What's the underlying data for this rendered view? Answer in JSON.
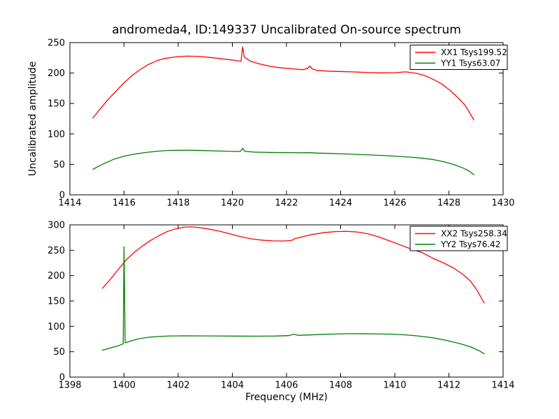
{
  "figure": {
    "title": "andromeda4, ID:149337 Uncalibrated On-source spectrum",
    "background": "#ffffff"
  },
  "axes": {
    "ylabel": "Uncalibrated amplitude",
    "xlabel": "Frequency (MHz)"
  },
  "colors": {
    "xx_line": "#ff0000",
    "yy_line": "#008000",
    "axis": "#000000",
    "legend_background": "#ffffff"
  },
  "chart_data": [
    {
      "type": "line",
      "title": "",
      "xlabel": "",
      "ylabel": "Uncalibrated amplitude",
      "xlim": [
        1414,
        1430
      ],
      "ylim": [
        0,
        250
      ],
      "xticks": [
        1414,
        1416,
        1418,
        1420,
        1422,
        1424,
        1426,
        1428,
        1430
      ],
      "yticks": [
        0,
        50,
        100,
        150,
        200,
        250
      ],
      "grid": false,
      "legend_position": "upper right",
      "series": [
        {
          "name": "XX1 Tsys199.52",
          "color": "#ff0000",
          "points": [
            [
              1414.85,
              126
            ],
            [
              1415.1,
              140
            ],
            [
              1415.4,
              156
            ],
            [
              1415.7,
              170
            ],
            [
              1416.0,
              184
            ],
            [
              1416.3,
              196
            ],
            [
              1416.6,
              206
            ],
            [
              1416.9,
              214
            ],
            [
              1417.2,
              220
            ],
            [
              1417.5,
              224
            ],
            [
              1417.9,
              226.5
            ],
            [
              1418.3,
              227.8
            ],
            [
              1418.7,
              227.5
            ],
            [
              1419.1,
              226
            ],
            [
              1419.5,
              224
            ],
            [
              1419.9,
              222
            ],
            [
              1420.2,
              220
            ],
            [
              1420.32,
              219.5
            ],
            [
              1420.38,
              243
            ],
            [
              1420.44,
              226
            ],
            [
              1420.55,
              223
            ],
            [
              1420.7,
              219
            ],
            [
              1421.0,
              215
            ],
            [
              1421.4,
              211
            ],
            [
              1421.8,
              208.5
            ],
            [
              1422.2,
              207
            ],
            [
              1422.6,
              205.5
            ],
            [
              1422.78,
              207.5
            ],
            [
              1422.85,
              211.5
            ],
            [
              1422.95,
              207
            ],
            [
              1423.1,
              204.5
            ],
            [
              1423.5,
              203.2
            ],
            [
              1424.0,
              202.5
            ],
            [
              1424.5,
              201.8
            ],
            [
              1425.0,
              200.8
            ],
            [
              1425.5,
              200.2
            ],
            [
              1426.0,
              200.5
            ],
            [
              1426.4,
              202
            ],
            [
              1426.8,
              199.5
            ],
            [
              1427.1,
              196
            ],
            [
              1427.4,
              190
            ],
            [
              1427.7,
              183
            ],
            [
              1428.0,
              173
            ],
            [
              1428.3,
              161
            ],
            [
              1428.6,
              147
            ],
            [
              1428.92,
              123
            ]
          ]
        },
        {
          "name": "YY1 Tsys63.07",
          "color": "#008000",
          "points": [
            [
              1414.85,
              42
            ],
            [
              1415.2,
              50
            ],
            [
              1415.6,
              58
            ],
            [
              1416.0,
              63.5
            ],
            [
              1416.4,
              67
            ],
            [
              1416.8,
              69.5
            ],
            [
              1417.2,
              71.5
            ],
            [
              1417.6,
              72.8
            ],
            [
              1418.0,
              73.2
            ],
            [
              1418.5,
              73.2
            ],
            [
              1419.0,
              72.6
            ],
            [
              1419.5,
              72
            ],
            [
              1420.0,
              71.4
            ],
            [
              1420.3,
              71.2
            ],
            [
              1420.38,
              76.5
            ],
            [
              1420.46,
              71.5
            ],
            [
              1420.8,
              70.2
            ],
            [
              1421.3,
              69.6
            ],
            [
              1421.9,
              69.3
            ],
            [
              1422.5,
              69.1
            ],
            [
              1422.85,
              69.3
            ],
            [
              1423.1,
              68.6
            ],
            [
              1423.6,
              68
            ],
            [
              1424.1,
              67.2
            ],
            [
              1424.6,
              66.4
            ],
            [
              1425.1,
              65.5
            ],
            [
              1425.6,
              64.5
            ],
            [
              1426.1,
              63.2
            ],
            [
              1426.6,
              61.8
            ],
            [
              1427.0,
              60.3
            ],
            [
              1427.4,
              58
            ],
            [
              1427.8,
              54.5
            ],
            [
              1428.2,
              49.5
            ],
            [
              1428.5,
              44.5
            ],
            [
              1428.75,
              39
            ],
            [
              1428.92,
              33
            ]
          ]
        }
      ]
    },
    {
      "type": "line",
      "title": "",
      "xlabel": "Frequency (MHz)",
      "ylabel": "",
      "xlim": [
        1398,
        1414
      ],
      "ylim": [
        0,
        300
      ],
      "xticks": [
        1398,
        1400,
        1402,
        1404,
        1406,
        1408,
        1410,
        1412,
        1414
      ],
      "yticks": [
        0,
        50,
        100,
        150,
        200,
        250,
        300
      ],
      "grid": false,
      "legend_position": "upper right",
      "series": [
        {
          "name": "XX2 Tsys258.34",
          "color": "#ff0000",
          "points": [
            [
              1399.2,
              175
            ],
            [
              1399.5,
              193
            ],
            [
              1399.8,
              213
            ],
            [
              1400.1,
              232
            ],
            [
              1400.4,
              247
            ],
            [
              1400.7,
              259
            ],
            [
              1401.0,
              270
            ],
            [
              1401.3,
              279
            ],
            [
              1401.6,
              287
            ],
            [
              1401.9,
              292
            ],
            [
              1402.2,
              295.5
            ],
            [
              1402.5,
              296
            ],
            [
              1402.8,
              294.5
            ],
            [
              1403.1,
              292
            ],
            [
              1403.5,
              288
            ],
            [
              1403.9,
              282.5
            ],
            [
              1404.3,
              277
            ],
            [
              1404.7,
              272.5
            ],
            [
              1405.1,
              269.8
            ],
            [
              1405.5,
              268.5
            ],
            [
              1405.9,
              268.2
            ],
            [
              1406.2,
              269.5
            ],
            [
              1406.3,
              273
            ],
            [
              1406.45,
              274.5
            ],
            [
              1406.7,
              278
            ],
            [
              1407.0,
              281.5
            ],
            [
              1407.4,
              284.8
            ],
            [
              1407.8,
              286.8
            ],
            [
              1408.2,
              287.3
            ],
            [
              1408.6,
              286
            ],
            [
              1409.0,
              282.5
            ],
            [
              1409.4,
              276.5
            ],
            [
              1409.8,
              268.5
            ],
            [
              1410.2,
              260.5
            ],
            [
              1410.6,
              252.5
            ],
            [
              1411.0,
              245.5
            ],
            [
              1411.4,
              234.5
            ],
            [
              1411.8,
              225
            ],
            [
              1412.2,
              214
            ],
            [
              1412.5,
              203
            ],
            [
              1412.8,
              189
            ],
            [
              1413.05,
              170
            ],
            [
              1413.3,
              146
            ]
          ]
        },
        {
          "name": "YY2 Tsys76.42",
          "color": "#008000",
          "points": [
            [
              1399.2,
              53
            ],
            [
              1399.5,
              57.5
            ],
            [
              1399.8,
              62
            ],
            [
              1399.97,
              65.5
            ],
            [
              1400.0,
              257
            ],
            [
              1400.04,
              67.5
            ],
            [
              1400.3,
              72
            ],
            [
              1400.6,
              76
            ],
            [
              1400.9,
              78.5
            ],
            [
              1401.3,
              80.2
            ],
            [
              1401.7,
              81
            ],
            [
              1402.2,
              81.3
            ],
            [
              1402.8,
              81.2
            ],
            [
              1403.5,
              81
            ],
            [
              1404.2,
              80.8
            ],
            [
              1404.9,
              80.7
            ],
            [
              1405.6,
              80.9
            ],
            [
              1406.1,
              81.8
            ],
            [
              1406.26,
              84.5
            ],
            [
              1406.45,
              82.3
            ],
            [
              1406.8,
              83
            ],
            [
              1407.3,
              84.2
            ],
            [
              1407.8,
              85
            ],
            [
              1408.3,
              85.5
            ],
            [
              1408.8,
              85.4
            ],
            [
              1409.3,
              85.1
            ],
            [
              1409.9,
              84.6
            ],
            [
              1410.4,
              83.2
            ],
            [
              1410.9,
              80.8
            ],
            [
              1411.4,
              77.5
            ],
            [
              1411.9,
              72.5
            ],
            [
              1412.4,
              66
            ],
            [
              1412.8,
              59.5
            ],
            [
              1413.1,
              52.5
            ],
            [
              1413.3,
              46
            ]
          ]
        }
      ]
    }
  ]
}
